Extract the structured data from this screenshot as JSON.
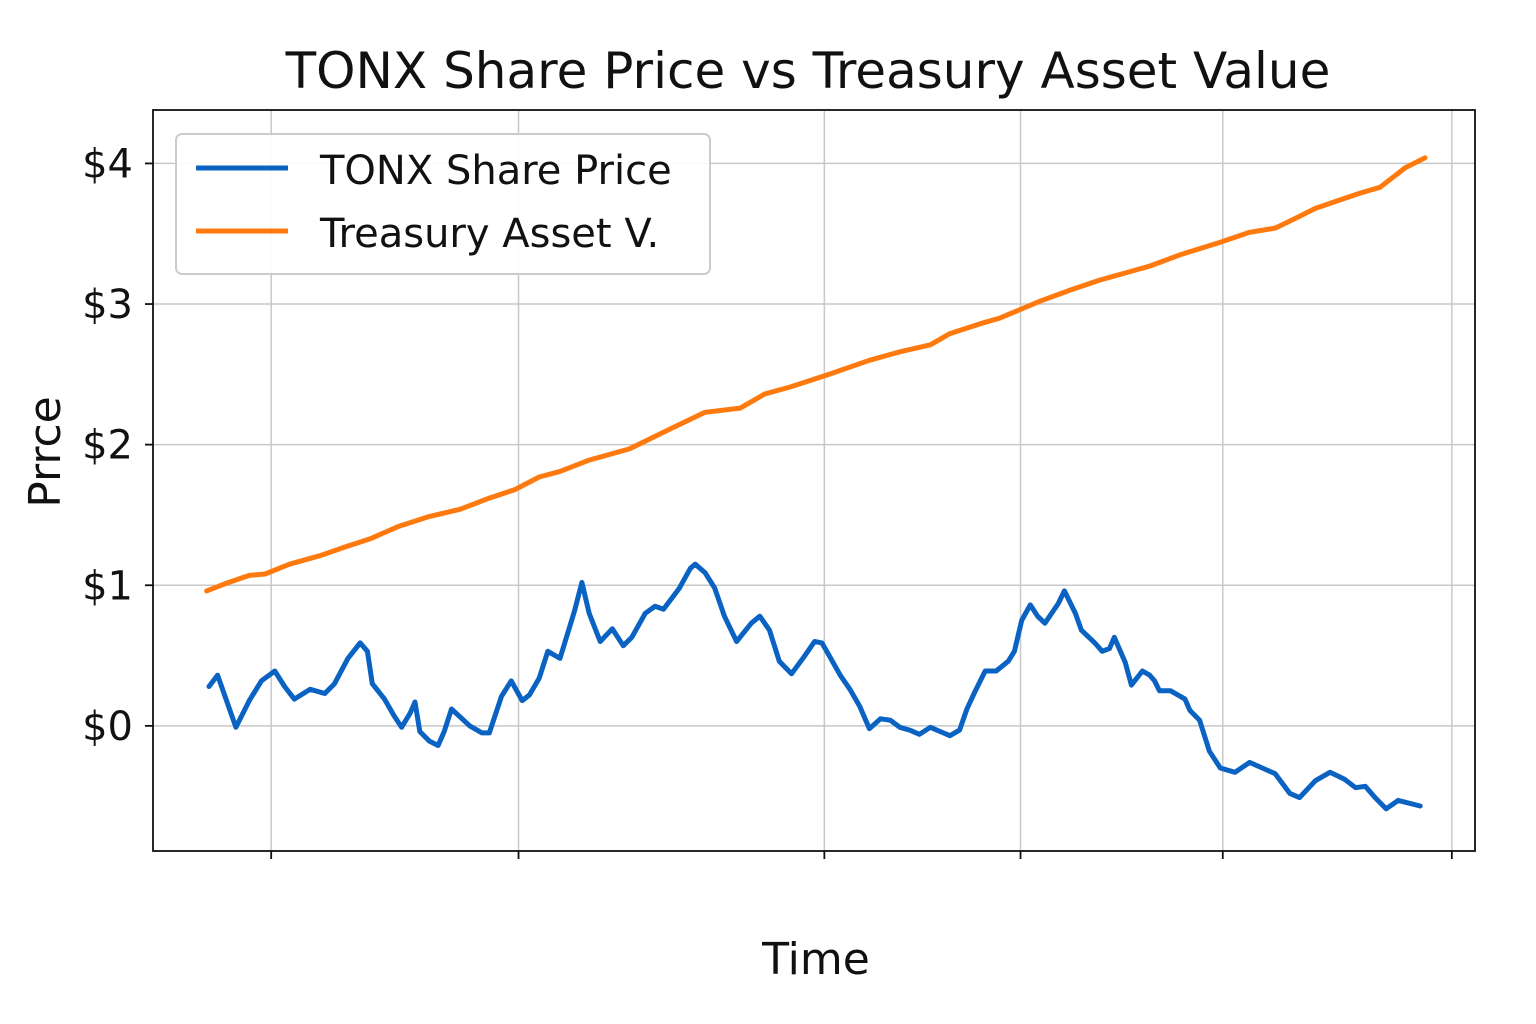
{
  "chart_data": {
    "type": "line",
    "title": "TONX Share Price vs Treasury Asset Value",
    "xlabel": "Time",
    "ylabel": "Prrce",
    "xlim": [
      -4.4,
      104.1
    ],
    "ylim": [
      -0.89,
      4.38
    ],
    "x_ticks": [
      5.3,
      25.6,
      50.7,
      66.8,
      83.4,
      102.2
    ],
    "y_ticks": [
      0,
      1,
      2,
      3,
      4
    ],
    "y_tick_labels": [
      "$0",
      "$1",
      "$2",
      "$3",
      "$4"
    ],
    "grid": true,
    "legend_position": "top-left",
    "series": [
      {
        "name": "TONX Share Price",
        "color": "#0a62c2",
        "x": [
          0.2,
          0.9,
          2.4,
          3.5,
          4.5,
          5.6,
          6.4,
          7.2,
          8.5,
          9.7,
          10.5,
          11.6,
          12.6,
          13.2,
          13.6,
          14.6,
          15.4,
          16.0,
          16.7,
          17.1,
          17.5,
          18.3,
          19.0,
          19.5,
          20.1,
          21.6,
          22.6,
          23.2,
          24.2,
          25.0,
          25.9,
          26.5,
          27.3,
          28.0,
          29.0,
          30.2,
          30.8,
          31.4,
          32.3,
          33.3,
          34.2,
          34.9,
          36.0,
          36.8,
          37.5,
          38.8,
          39.7,
          40.1,
          40.9,
          41.7,
          42.5,
          43.5,
          44.7,
          45.4,
          46.2,
          47.0,
          48.0,
          49.1,
          49.9,
          50.5,
          51.1,
          52.0,
          52.8,
          53.6,
          54.4,
          55.3,
          56.1,
          56.9,
          57.7,
          58.5,
          59.4,
          60.2,
          61.0,
          61.8,
          62.4,
          63.1,
          63.9,
          64.8,
          65.8,
          66.3,
          66.9,
          67.6,
          68.2,
          68.8,
          69.9,
          70.4,
          71.3,
          71.8,
          72.9,
          73.5,
          74.1,
          74.5,
          75.4,
          75.9,
          76.8,
          77.4,
          77.8,
          78.2,
          79.1,
          80.3,
          80.7,
          81.5,
          82.3,
          83.2,
          84.4,
          85.6,
          86.9,
          87.7,
          88.9,
          89.7,
          91.0,
          92.2,
          93.4,
          94.3,
          95.1,
          95.9,
          96.8,
          97.8,
          99.6
        ],
        "values": [
          0.28,
          0.36,
          -0.01,
          0.18,
          0.32,
          0.39,
          0.28,
          0.19,
          0.26,
          0.23,
          0.3,
          0.48,
          0.59,
          0.53,
          0.3,
          0.19,
          0.07,
          -0.01,
          0.09,
          0.17,
          -0.04,
          -0.11,
          -0.14,
          -0.04,
          0.12,
          0.0,
          -0.05,
          -0.05,
          0.21,
          0.32,
          0.18,
          0.22,
          0.34,
          0.53,
          0.48,
          0.82,
          1.02,
          0.8,
          0.6,
          0.69,
          0.57,
          0.63,
          0.8,
          0.85,
          0.83,
          0.98,
          1.12,
          1.15,
          1.09,
          0.98,
          0.78,
          0.6,
          0.73,
          0.78,
          0.68,
          0.46,
          0.37,
          0.5,
          0.6,
          0.59,
          0.5,
          0.36,
          0.26,
          0.14,
          -0.02,
          0.05,
          0.04,
          -0.01,
          -0.03,
          -0.06,
          -0.01,
          -0.04,
          -0.07,
          -0.03,
          0.12,
          0.25,
          0.39,
          0.39,
          0.46,
          0.53,
          0.75,
          0.86,
          0.78,
          0.73,
          0.87,
          0.96,
          0.8,
          0.68,
          0.59,
          0.53,
          0.55,
          0.63,
          0.45,
          0.29,
          0.39,
          0.36,
          0.32,
          0.25,
          0.25,
          0.19,
          0.11,
          0.04,
          -0.18,
          -0.3,
          -0.33,
          -0.26,
          -0.31,
          -0.34,
          -0.48,
          -0.51,
          -0.39,
          -0.33,
          -0.38,
          -0.44,
          -0.43,
          -0.51,
          -0.59,
          -0.53,
          -0.57
        ]
      },
      {
        "name": "Treasury Asset V.",
        "color": "#ff7a0e",
        "x": [
          0,
          1.5,
          3.5,
          4.8,
          6.8,
          9.3,
          11.3,
          13.4,
          15.8,
          18.3,
          20.8,
          23.2,
          25.3,
          27.3,
          29.0,
          31.4,
          34.7,
          38.0,
          40.9,
          43.8,
          45.8,
          47.9,
          51.1,
          54.4,
          56.9,
          59.4,
          61.0,
          63.5,
          65.1,
          68.4,
          70.9,
          73.3,
          77.4,
          79.9,
          83.2,
          85.6,
          87.7,
          88.9,
          91.0,
          93.0,
          94.7,
          96.3,
          98.4,
          100
        ],
        "values": [
          0.96,
          1.01,
          1.07,
          1.08,
          1.15,
          1.21,
          1.27,
          1.33,
          1.42,
          1.49,
          1.54,
          1.62,
          1.68,
          1.77,
          1.81,
          1.89,
          1.97,
          2.11,
          2.23,
          2.26,
          2.36,
          2.41,
          2.5,
          2.6,
          2.66,
          2.71,
          2.79,
          2.86,
          2.9,
          3.02,
          3.1,
          3.17,
          3.27,
          3.35,
          3.44,
          3.51,
          3.54,
          3.59,
          3.68,
          3.74,
          3.79,
          3.83,
          3.97,
          4.04
        ]
      }
    ]
  }
}
